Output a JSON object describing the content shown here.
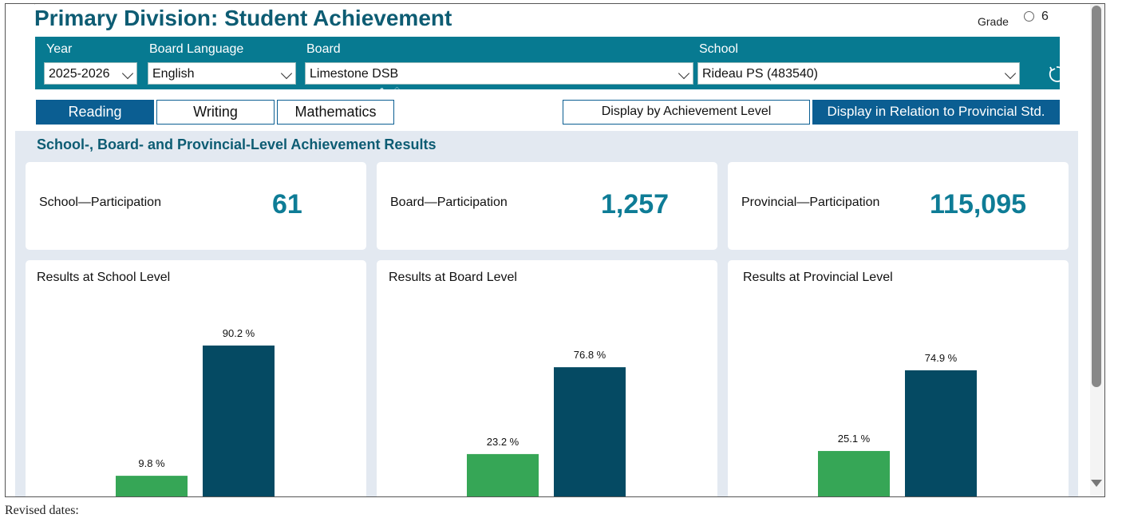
{
  "header": {
    "title": "Primary Division: Student Achievement",
    "grade_label": "Grade",
    "grade_value": "6"
  },
  "filters": {
    "year": {
      "label": "Year",
      "value": "2025-2026"
    },
    "board_language": {
      "label": "Board Language",
      "value": "English"
    },
    "board": {
      "label": "Board",
      "value": "Limestone DSB"
    },
    "school": {
      "label": "School",
      "value": "Rideau PS (483540)"
    }
  },
  "subject_tabs": [
    {
      "label": "Reading",
      "active": true
    },
    {
      "label": "Writing",
      "active": false
    },
    {
      "label": "Mathematics",
      "active": false
    }
  ],
  "display_options": [
    {
      "label": "Display by Achievement Level",
      "active": false
    },
    {
      "label": "Display in Relation to Provincial Std.",
      "active": true
    }
  ],
  "section_title": "School-, Board- and Provincial-Level Achievement Results",
  "participation": [
    {
      "label": "School—Participation",
      "value": "61"
    },
    {
      "label": "Board—Participation",
      "value": "1,257"
    },
    {
      "label": "Provincial—Participation",
      "value": "115,095"
    }
  ],
  "colors": {
    "below_std": "#36a656",
    "at_or_above_std": "#054a63",
    "accent": "#077a91"
  },
  "chart_data": [
    {
      "type": "bar",
      "title": "Results at School Level",
      "categories": [
        "",
        ""
      ],
      "values": [
        9.8,
        90.2
      ],
      "labels": [
        "9.8 %",
        "90.2 %"
      ],
      "ylim": [
        0,
        100
      ]
    },
    {
      "type": "bar",
      "title": "Results at Board Level",
      "categories": [
        "",
        ""
      ],
      "values": [
        23.2,
        76.8
      ],
      "labels": [
        "23.2 %",
        "76.8 %"
      ],
      "ylim": [
        0,
        100
      ]
    },
    {
      "type": "bar",
      "title": "Results at Provincial Level",
      "categories": [
        "",
        ""
      ],
      "values": [
        25.1,
        74.9
      ],
      "labels": [
        "25.1 %",
        "74.9 %"
      ],
      "ylim": [
        0,
        100
      ]
    }
  ],
  "footer": {
    "note": "Revised dates:"
  }
}
